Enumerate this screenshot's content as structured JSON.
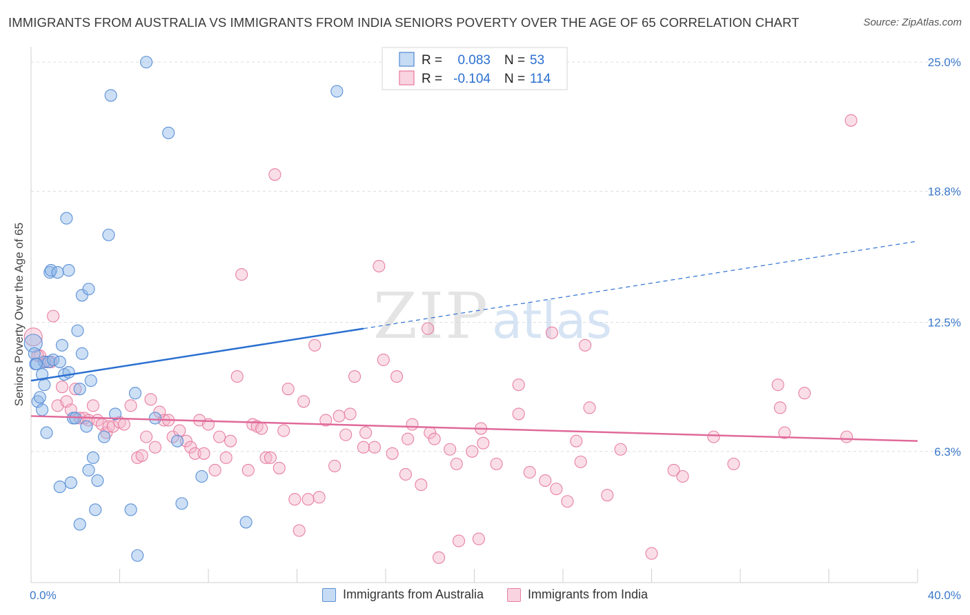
{
  "chart_data": {
    "type": "scatter",
    "title": "IMMIGRANTS FROM AUSTRALIA VS IMMIGRANTS FROM INDIA SENIORS POVERTY OVER THE AGE OF 65 CORRELATION CHART",
    "source": "Source: ZipAtlas.com",
    "ylabel": "Seniors Poverty Over the Age of 65",
    "xlim": [
      0,
      40
    ],
    "ylim": [
      0,
      25.6
    ],
    "x_tick_labels": {
      "min": "0.0%",
      "max": "40.0%"
    },
    "y_ticks": [
      {
        "value": 6.3,
        "label": "6.3%"
      },
      {
        "value": 12.5,
        "label": "12.5%"
      },
      {
        "value": 18.8,
        "label": "18.8%"
      },
      {
        "value": 25.0,
        "label": "25.0%"
      }
    ],
    "legend": {
      "rows": [
        {
          "r_label": "R =",
          "r_value": "0.083",
          "n_label": "N =",
          "n_value": "53"
        },
        {
          "r_label": "R =",
          "r_value": "-0.104",
          "n_label": "N =",
          "n_value": "114"
        }
      ]
    },
    "watermark": {
      "zip": "ZIP",
      "atlas": "atlas"
    },
    "series": [
      {
        "name": "Immigrants from Australia",
        "color": "#8fb8e8",
        "edge": "#5a8fd6",
        "line_color": "#2a6fd0",
        "trend": {
          "x0": 0,
          "y0": 9.7,
          "x1": 15,
          "y1": 12.2,
          "x_end": 40,
          "y_end": 16.4
        },
        "points": [
          [
            0.1,
            11.5
          ],
          [
            0.15,
            11.0
          ],
          [
            0.2,
            10.5
          ],
          [
            0.3,
            8.7
          ],
          [
            0.4,
            8.9
          ],
          [
            0.5,
            10.0
          ],
          [
            0.5,
            8.3
          ],
          [
            0.6,
            9.5
          ],
          [
            0.6,
            10.6
          ],
          [
            0.7,
            7.2
          ],
          [
            0.8,
            10.6
          ],
          [
            0.85,
            14.9
          ],
          [
            0.9,
            15.0
          ],
          [
            1.0,
            10.7
          ],
          [
            1.2,
            14.9
          ],
          [
            1.3,
            10.6
          ],
          [
            1.4,
            11.4
          ],
          [
            1.5,
            10.0
          ],
          [
            1.6,
            17.5
          ],
          [
            1.7,
            10.1
          ],
          [
            1.7,
            15.0
          ],
          [
            1.3,
            4.6
          ],
          [
            1.8,
            4.8
          ],
          [
            1.9,
            7.9
          ],
          [
            2.0,
            7.9
          ],
          [
            2.1,
            12.1
          ],
          [
            2.2,
            2.8
          ],
          [
            2.2,
            9.3
          ],
          [
            2.3,
            11.0
          ],
          [
            2.3,
            13.8
          ],
          [
            2.5,
            7.5
          ],
          [
            2.6,
            14.1
          ],
          [
            2.6,
            5.4
          ],
          [
            2.7,
            9.7
          ],
          [
            2.8,
            6.0
          ],
          [
            2.9,
            3.5
          ],
          [
            3.0,
            4.9
          ],
          [
            3.3,
            7.0
          ],
          [
            3.5,
            16.7
          ],
          [
            3.6,
            23.4
          ],
          [
            3.8,
            8.1
          ],
          [
            4.5,
            3.5
          ],
          [
            4.7,
            9.1
          ],
          [
            4.8,
            1.3
          ],
          [
            5.2,
            25.0
          ],
          [
            5.6,
            7.9
          ],
          [
            6.2,
            21.6
          ],
          [
            6.6,
            6.8
          ],
          [
            6.8,
            3.8
          ],
          [
            7.7,
            5.1
          ],
          [
            9.7,
            2.9
          ],
          [
            13.8,
            23.6
          ],
          [
            0.25,
            10.5
          ]
        ]
      },
      {
        "name": "Immigrants from India",
        "color": "#f4b6c9",
        "edge": "#e77fa2",
        "line_color": "#e0699a",
        "trend": {
          "x0": 0,
          "y0": 8.0,
          "x1": 40,
          "y1": 6.8
        },
        "points": [
          [
            0.1,
            11.8
          ],
          [
            0.4,
            10.9
          ],
          [
            0.7,
            10.6
          ],
          [
            0.9,
            10.6
          ],
          [
            1.0,
            12.8
          ],
          [
            1.2,
            8.5
          ],
          [
            1.4,
            9.4
          ],
          [
            1.6,
            8.7
          ],
          [
            1.8,
            8.3
          ],
          [
            2.0,
            9.3
          ],
          [
            2.2,
            7.9
          ],
          [
            2.4,
            7.9
          ],
          [
            2.6,
            7.8
          ],
          [
            2.8,
            8.5
          ],
          [
            3.0,
            7.8
          ],
          [
            3.2,
            7.6
          ],
          [
            3.4,
            7.2
          ],
          [
            3.5,
            7.5
          ],
          [
            3.7,
            7.5
          ],
          [
            4.0,
            7.7
          ],
          [
            4.2,
            7.6
          ],
          [
            4.5,
            8.5
          ],
          [
            4.8,
            6.0
          ],
          [
            5.0,
            6.1
          ],
          [
            5.2,
            7.0
          ],
          [
            5.4,
            8.8
          ],
          [
            5.6,
            6.5
          ],
          [
            5.8,
            8.2
          ],
          [
            6.0,
            7.8
          ],
          [
            6.2,
            7.8
          ],
          [
            6.4,
            7.0
          ],
          [
            6.7,
            7.3
          ],
          [
            7.0,
            6.8
          ],
          [
            7.2,
            6.5
          ],
          [
            7.4,
            6.2
          ],
          [
            7.6,
            7.8
          ],
          [
            7.8,
            6.2
          ],
          [
            8.0,
            7.6
          ],
          [
            8.3,
            5.4
          ],
          [
            8.5,
            7.0
          ],
          [
            8.8,
            6.0
          ],
          [
            9.0,
            6.8
          ],
          [
            9.3,
            9.9
          ],
          [
            9.5,
            14.8
          ],
          [
            9.8,
            5.4
          ],
          [
            10.0,
            7.6
          ],
          [
            10.2,
            7.5
          ],
          [
            10.4,
            7.4
          ],
          [
            10.6,
            6.0
          ],
          [
            10.8,
            6.0
          ],
          [
            11.0,
            19.6
          ],
          [
            11.2,
            5.5
          ],
          [
            11.4,
            7.3
          ],
          [
            11.6,
            9.3
          ],
          [
            11.9,
            4.0
          ],
          [
            12.1,
            2.5
          ],
          [
            12.3,
            8.7
          ],
          [
            12.5,
            4.0
          ],
          [
            12.8,
            11.4
          ],
          [
            13.0,
            4.1
          ],
          [
            13.3,
            7.8
          ],
          [
            13.7,
            5.6
          ],
          [
            13.9,
            8.0
          ],
          [
            14.2,
            7.1
          ],
          [
            14.4,
            8.1
          ],
          [
            14.6,
            9.9
          ],
          [
            15.0,
            6.5
          ],
          [
            15.1,
            7.2
          ],
          [
            15.5,
            6.5
          ],
          [
            15.7,
            15.2
          ],
          [
            15.9,
            10.7
          ],
          [
            16.3,
            6.2
          ],
          [
            16.5,
            9.9
          ],
          [
            16.9,
            5.2
          ],
          [
            17.0,
            6.9
          ],
          [
            17.2,
            7.6
          ],
          [
            17.6,
            4.7
          ],
          [
            17.9,
            12.2
          ],
          [
            18.0,
            7.2
          ],
          [
            18.2,
            6.9
          ],
          [
            18.4,
            1.2
          ],
          [
            18.9,
            6.4
          ],
          [
            19.2,
            5.7
          ],
          [
            19.3,
            2.0
          ],
          [
            19.9,
            6.3
          ],
          [
            20.2,
            2.1
          ],
          [
            20.3,
            7.4
          ],
          [
            20.4,
            6.7
          ],
          [
            21.0,
            5.7
          ],
          [
            22.0,
            9.5
          ],
          [
            22.0,
            8.1
          ],
          [
            22.5,
            5.3
          ],
          [
            23.2,
            4.9
          ],
          [
            23.5,
            12.0
          ],
          [
            23.7,
            4.5
          ],
          [
            24.2,
            3.9
          ],
          [
            24.6,
            6.8
          ],
          [
            24.8,
            5.8
          ],
          [
            25.0,
            11.4
          ],
          [
            25.2,
            8.4
          ],
          [
            26.0,
            4.2
          ],
          [
            26.6,
            6.4
          ],
          [
            28.0,
            1.4
          ],
          [
            29.0,
            5.4
          ],
          [
            29.4,
            5.1
          ],
          [
            30.8,
            7.0
          ],
          [
            31.7,
            5.7
          ],
          [
            33.7,
            9.5
          ],
          [
            33.8,
            8.4
          ],
          [
            34.0,
            7.2
          ],
          [
            34.9,
            9.1
          ],
          [
            36.8,
            7.0
          ],
          [
            37.0,
            22.2
          ],
          [
            0.3,
            10.9
          ]
        ]
      }
    ]
  }
}
